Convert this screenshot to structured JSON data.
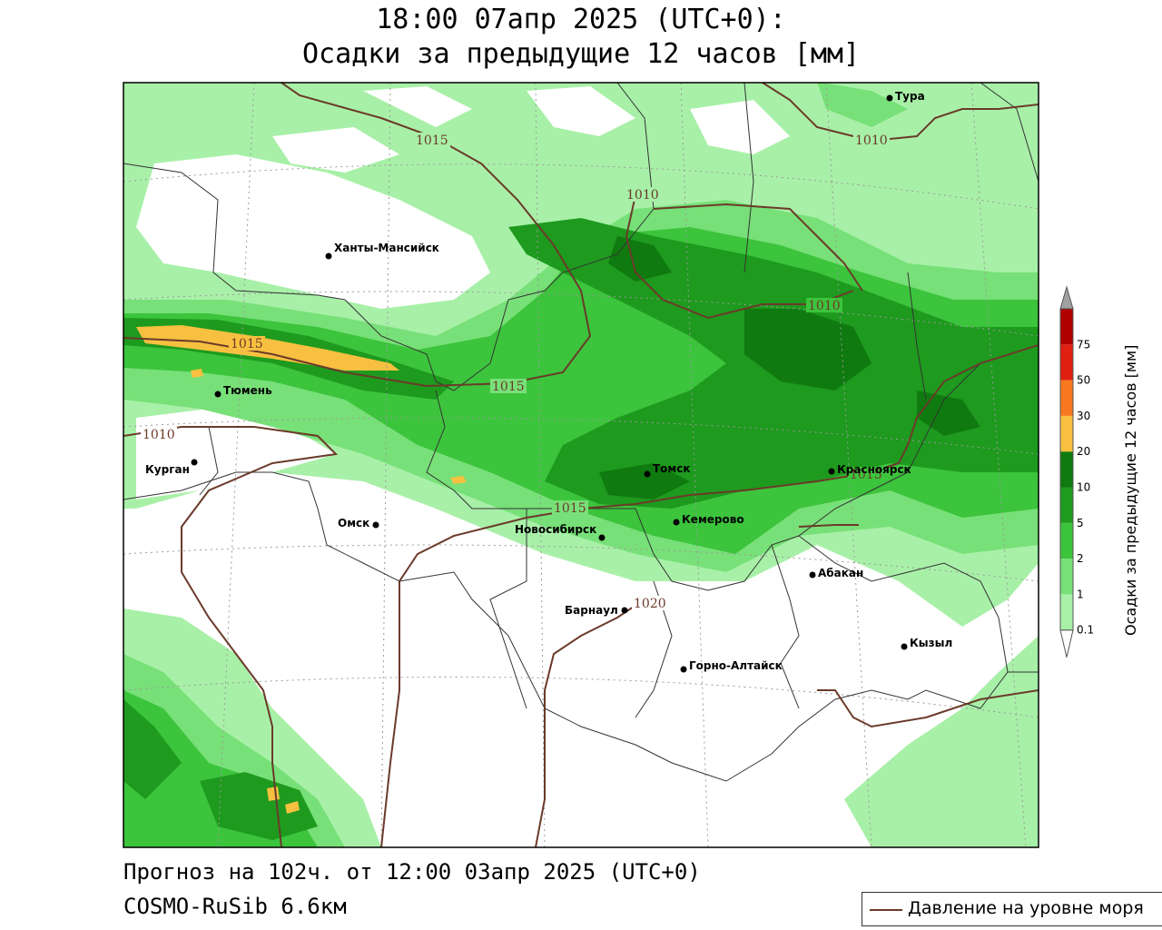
{
  "header": {
    "title_line1": "18:00 07апр 2025 (UTC+0):",
    "title_line2": "Осадки за предыдущие 12 часов [мм]"
  },
  "footer": {
    "forecast": "Прогноз на 102ч. от 12:00 03апр 2025 (UTC+0)",
    "model": "COSMO-RuSib 6.6км"
  },
  "legend": {
    "isobar_label": "Давление на уровне моря",
    "isobar_color": "#6b3a2a"
  },
  "colorbar": {
    "title": "Осадки за предыдущие 12 часов [мм]",
    "ticks": [
      "0.1",
      "1",
      "2",
      "5",
      "10",
      "20",
      "30",
      "50",
      "75"
    ],
    "colors": [
      "#a8f0a8",
      "#78e078",
      "#3cc43c",
      "#1e9a1e",
      "#0f7a0f",
      "#f8c040",
      "#f87820",
      "#e02010",
      "#b00000",
      "#a0a0a0"
    ]
  },
  "cities": [
    {
      "name": "Тура"
    },
    {
      "name": "Ханты-Мансийск"
    },
    {
      "name": "Тюмень"
    },
    {
      "name": "Курган"
    },
    {
      "name": "Омск"
    },
    {
      "name": "Томск"
    },
    {
      "name": "Красноярск"
    },
    {
      "name": "Кемерово"
    },
    {
      "name": "Новосибирск"
    },
    {
      "name": "Абакан"
    },
    {
      "name": "Барнаул"
    },
    {
      "name": "Кызыл"
    },
    {
      "name": "Горно-Алтайск"
    }
  ],
  "isobars": [
    {
      "label": "1015"
    },
    {
      "label": "1010"
    },
    {
      "label": "1010"
    },
    {
      "label": "1010"
    },
    {
      "label": "1015"
    },
    {
      "label": "1015"
    },
    {
      "label": "1010"
    },
    {
      "label": "1015"
    },
    {
      "label": "1015"
    },
    {
      "label": "1020"
    }
  ]
}
